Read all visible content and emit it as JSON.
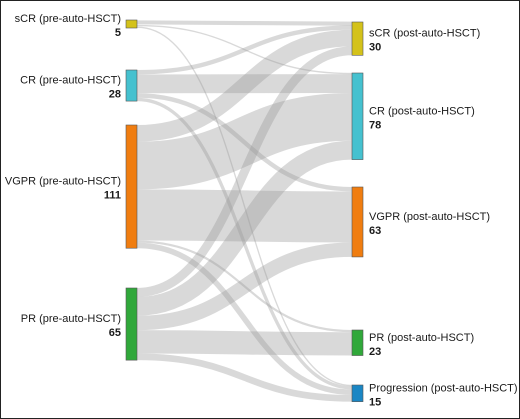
{
  "sources": [
    {
      "label": "sCR (pre-auto-HSCT)",
      "count": "5",
      "color": "#d4c21a"
    },
    {
      "label": "CR (pre-auto-HSCT)",
      "count": "28",
      "color": "#45c1cf"
    },
    {
      "label": "VGPR (pre-auto-HSCT)",
      "count": "111",
      "color": "#f07d10"
    },
    {
      "label": "PR (pre-auto-HSCT)",
      "count": "65",
      "color": "#30a83a"
    }
  ],
  "targets": [
    {
      "label": "sCR (post-auto-HSCT)",
      "count": "30",
      "color": "#d4c21a"
    },
    {
      "label": "CR (post-auto-HSCT)",
      "count": "78",
      "color": "#45c1cf"
    },
    {
      "label": "VGPR (post-auto-HSCT)",
      "count": "63",
      "color": "#f07d10"
    },
    {
      "label": "PR (post-auto-HSCT)",
      "count": "23",
      "color": "#30a83a"
    },
    {
      "label": "Progression (post-auto-HSCT)",
      "count": "15",
      "color": "#1a86c4"
    }
  ],
  "flows": [
    {
      "from": 0,
      "to": 0,
      "value": 3
    },
    {
      "from": 0,
      "to": 1,
      "value": 1
    },
    {
      "from": 0,
      "to": 4,
      "value": 1
    },
    {
      "from": 1,
      "to": 0,
      "value": 4
    },
    {
      "from": 1,
      "to": 1,
      "value": 17
    },
    {
      "from": 1,
      "to": 2,
      "value": 4
    },
    {
      "from": 1,
      "to": 4,
      "value": 3
    },
    {
      "from": 2,
      "to": 0,
      "value": 15
    },
    {
      "from": 2,
      "to": 1,
      "value": 43
    },
    {
      "from": 2,
      "to": 2,
      "value": 46
    },
    {
      "from": 2,
      "to": 3,
      "value": 2
    },
    {
      "from": 2,
      "to": 4,
      "value": 5
    },
    {
      "from": 3,
      "to": 0,
      "value": 8
    },
    {
      "from": 3,
      "to": 1,
      "value": 17
    },
    {
      "from": 3,
      "to": 2,
      "value": 13
    },
    {
      "from": 3,
      "to": 3,
      "value": 21
    },
    {
      "from": 3,
      "to": 4,
      "value": 6
    }
  ]
}
